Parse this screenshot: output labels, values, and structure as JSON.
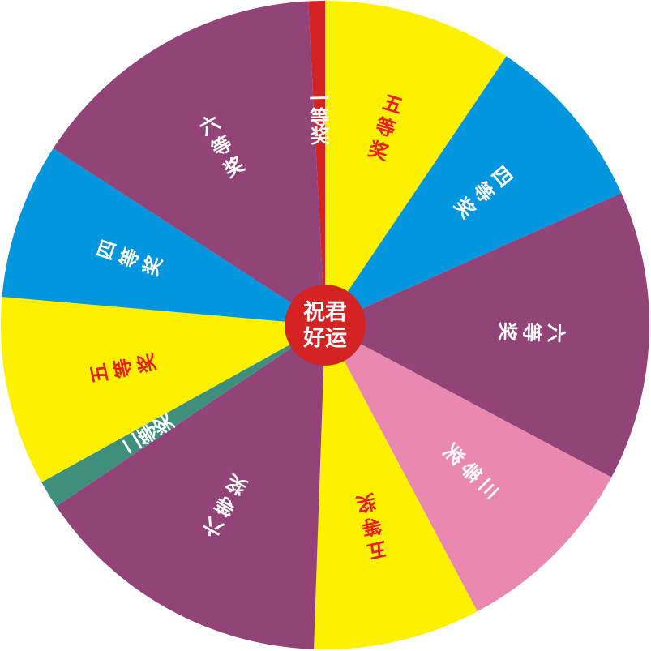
{
  "wheel": {
    "segments": [
      {
        "label": "一等奖",
        "color": "#d42322",
        "text_color": "#ffffff",
        "start_deg": -3,
        "end_deg": 0
      },
      {
        "label": "五等奖",
        "color": "#fdf100",
        "text_color": "#e8201f",
        "start_deg": 0,
        "end_deg": 34
      },
      {
        "label": "四等奖",
        "color": "#0296de",
        "text_color": "#ffffff",
        "start_deg": 34,
        "end_deg": 66
      },
      {
        "label": "六等奖",
        "color": "#924377",
        "text_color": "#ffffff",
        "start_deg": 66,
        "end_deg": 118
      },
      {
        "label": "三等奖",
        "color": "#ea89b0",
        "text_color": "#ffffff",
        "start_deg": 118,
        "end_deg": 152
      },
      {
        "label": "五等奖",
        "color": "#fdf100",
        "text_color": "#e8201f",
        "start_deg": 152,
        "end_deg": 182
      },
      {
        "label": "六等奖",
        "color": "#924377",
        "text_color": "#ffffff",
        "start_deg": 182,
        "end_deg": 236
      },
      {
        "label": "二等奖",
        "color": "#3e907d",
        "text_color": "#ffffff",
        "start_deg": 236,
        "end_deg": 241
      },
      {
        "label": "五等奖",
        "color": "#fdf100",
        "text_color": "#e8201f",
        "start_deg": 241,
        "end_deg": 275
      },
      {
        "label": "四等奖",
        "color": "#0296de",
        "text_color": "#ffffff",
        "start_deg": 275,
        "end_deg": 303
      },
      {
        "label": "六等奖",
        "color": "#924377",
        "text_color": "#ffffff",
        "start_deg": 303,
        "end_deg": 357
      }
    ],
    "hub": {
      "line1": "祝君",
      "line2": "好运",
      "color": "#d42322"
    }
  }
}
